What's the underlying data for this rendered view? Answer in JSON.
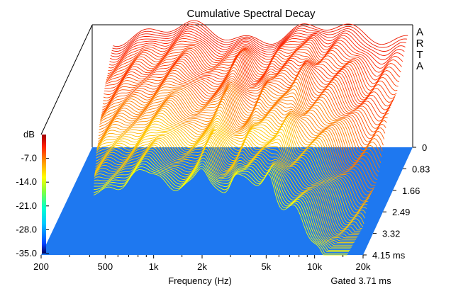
{
  "chart_data": {
    "type": "waterfall-3d",
    "title": "Cumulative Spectral Decay",
    "xlabel": "Frequency (Hz)",
    "x_scale": "log",
    "xlim": [
      200,
      20000
    ],
    "x_ticks": [
      "200",
      "500",
      "1k",
      "2k",
      "5k",
      "10k",
      "20k"
    ],
    "x_tick_values": [
      200,
      500,
      1000,
      2000,
      5000,
      10000,
      20000
    ],
    "time_ticks": [
      "0",
      "0.83",
      "1.66",
      "2.49",
      "3.32",
      "4.15 ms"
    ],
    "time_tick_values": [
      0,
      0.83,
      1.66,
      2.49,
      3.32,
      4.15
    ],
    "time_unit": "ms",
    "z_unit_label": "dB",
    "z_ticks": [
      "-7.0",
      "-14.0",
      "-21.0",
      "-28.0",
      "-35.0"
    ],
    "z_tick_values": [
      -7,
      -14,
      -21,
      -28,
      -35
    ],
    "zlim": [
      -35,
      0
    ],
    "side_label": [
      "A",
      "R",
      "T",
      "A"
    ],
    "footer_note": "Gated 3.71 ms",
    "colormap": [
      "#00005a",
      "#0040ff",
      "#00c8ff",
      "#00ffd0",
      "#80ff40",
      "#ffff00",
      "#ff9000",
      "#ff2000",
      "#a00000"
    ],
    "floor_color": "#1e78f0"
  }
}
